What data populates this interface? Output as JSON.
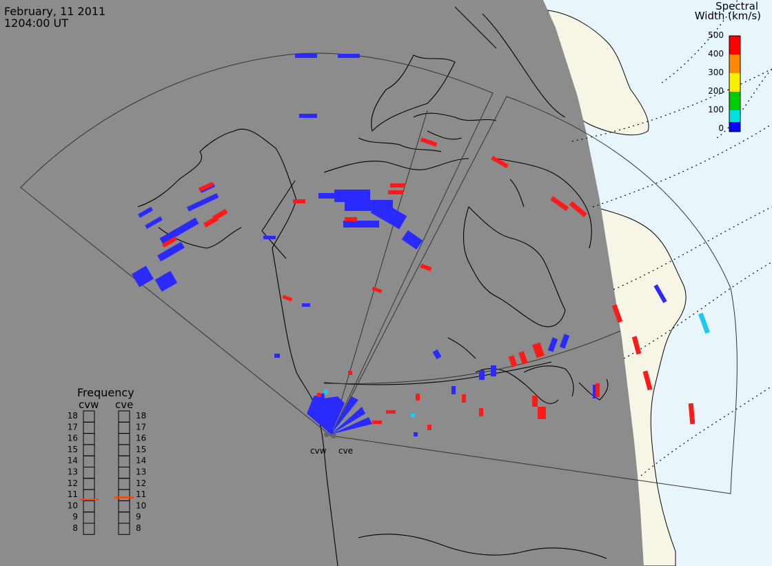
{
  "header": {
    "date": "February, 11 2011",
    "time": "1204:00 UT"
  },
  "colorbar": {
    "title_line1": "Spectral",
    "title_line2": "Width (km/s)",
    "ticks": [
      "500",
      "400",
      "300",
      "200",
      "100",
      "0"
    ],
    "colors": [
      "#ff0000",
      "#ff8800",
      "#ffee00",
      "#00cc00",
      "#00e0e0",
      "#0000ff"
    ]
  },
  "frequency_panel": {
    "title": "Frequency",
    "radar_left": "cvw",
    "radar_right": "cve",
    "scale": [
      "18",
      "17",
      "16",
      "15",
      "14",
      "13",
      "12",
      "11",
      "10",
      "9",
      "8"
    ],
    "cvw_mhz": 10.6,
    "cve_mhz": 10.8,
    "marker_color": "#ff4400"
  },
  "radars": {
    "left_label": "cvw",
    "right_label": "cve"
  },
  "colors": {
    "night": "#8c8c8c",
    "ocean_day": "#e8f6fc",
    "land_day": "#f7f5e6",
    "low_width": "#2a2aff",
    "high_width": "#ff1a1a",
    "mid_width": "#20c8f0"
  }
}
